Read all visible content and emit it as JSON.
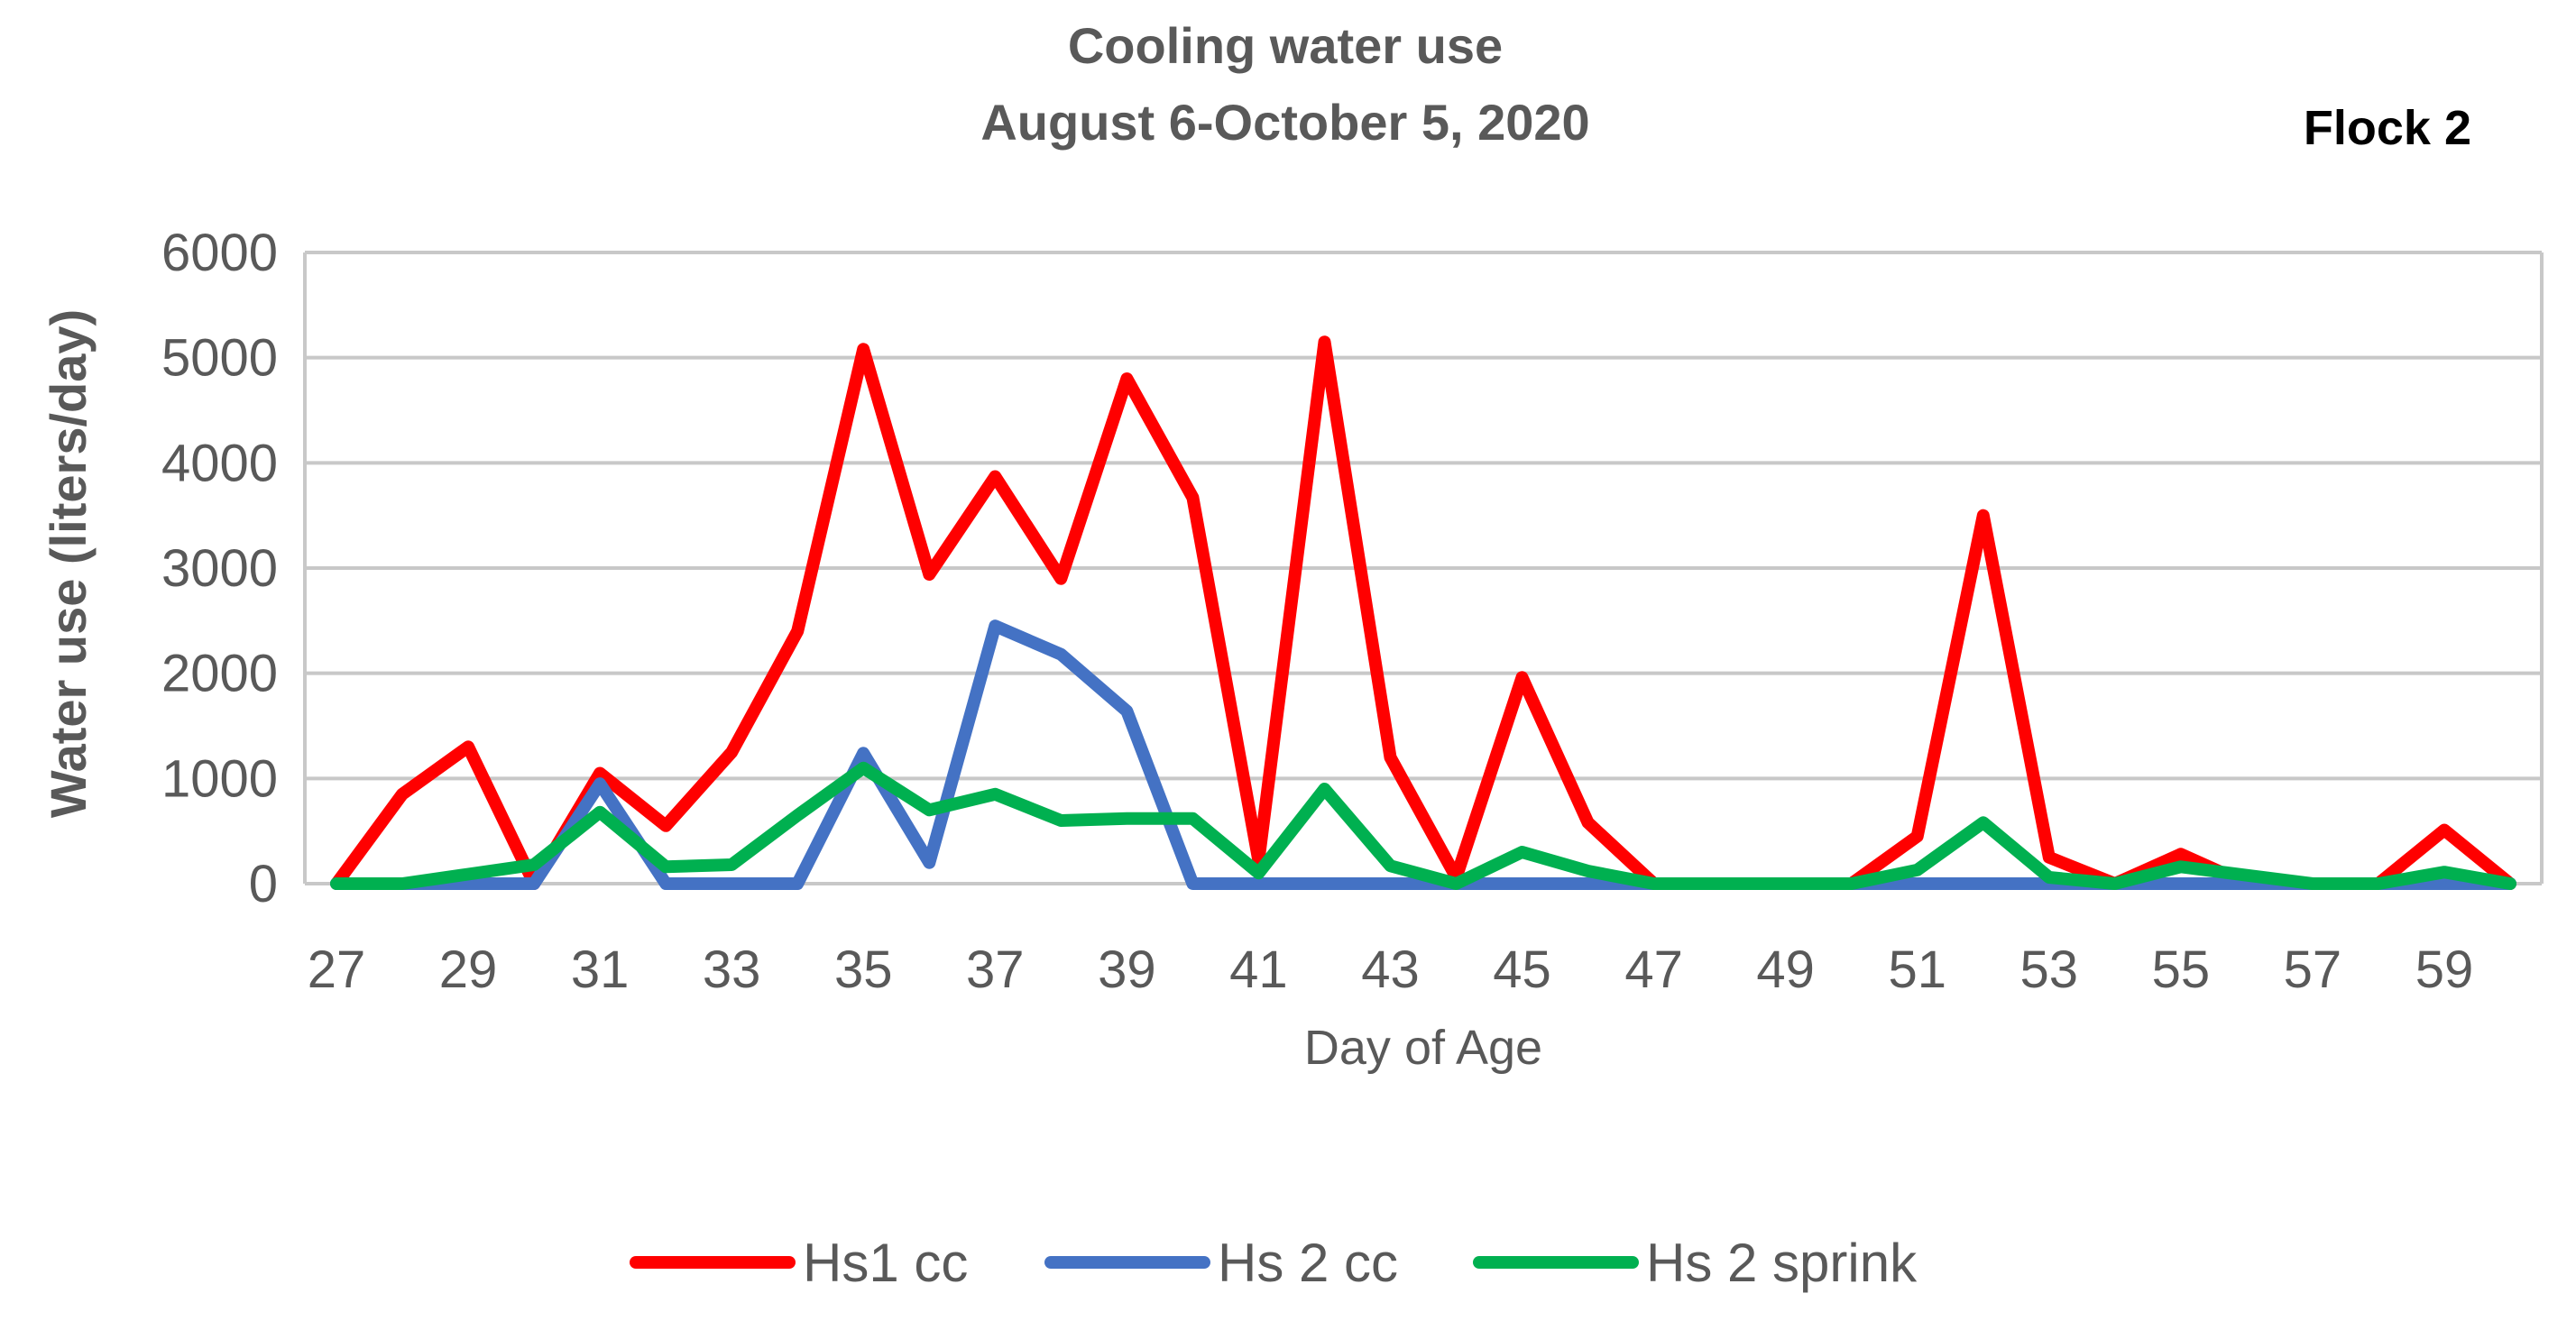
{
  "chart_data": {
    "type": "line",
    "title": "Cooling water use",
    "subtitle": "August 6-October 5, 2020",
    "annotation": "Flock 2",
    "xlabel": "Day of Age",
    "ylabel": "Water use (liters/day)",
    "ylim": [
      0,
      6000
    ],
    "yticks": [
      0,
      1000,
      2000,
      3000,
      4000,
      5000,
      6000
    ],
    "xticks": [
      27,
      29,
      31,
      33,
      35,
      37,
      39,
      41,
      43,
      45,
      47,
      49,
      51,
      53,
      55,
      57,
      59
    ],
    "grid": true,
    "legend_position": "bottom",
    "x": [
      27,
      28,
      29,
      30,
      31,
      32,
      33,
      34,
      35,
      36,
      37,
      38,
      39,
      40,
      41,
      42,
      43,
      44,
      45,
      46,
      47,
      48,
      49,
      50,
      51,
      52,
      53,
      54,
      55,
      56,
      57,
      58,
      59,
      60
    ],
    "series": [
      {
        "name": "Hs1 cc",
        "color": "#ff0000",
        "values": [
          0,
          850,
          1300,
          0,
          1050,
          550,
          1250,
          2400,
          5080,
          2940,
          3870,
          2900,
          4800,
          3670,
          220,
          5150,
          1200,
          60,
          1960,
          580,
          0,
          0,
          0,
          0,
          450,
          3500,
          250,
          0,
          280,
          0,
          0,
          0,
          510,
          0
        ]
      },
      {
        "name": "Hs 2 cc",
        "color": "#4472c4",
        "values": [
          0,
          0,
          0,
          0,
          950,
          0,
          0,
          0,
          1240,
          200,
          2450,
          2180,
          1640,
          0,
          0,
          0,
          0,
          0,
          0,
          0,
          0,
          0,
          0,
          0,
          0,
          0,
          0,
          0,
          0,
          0,
          0,
          0,
          0,
          0
        ]
      },
      {
        "name": "Hs 2 sprink",
        "color": "#00b050",
        "values": [
          0,
          0,
          90,
          180,
          680,
          160,
          180,
          650,
          1100,
          700,
          850,
          600,
          620,
          620,
          100,
          900,
          170,
          0,
          300,
          120,
          0,
          0,
          0,
          0,
          130,
          580,
          60,
          0,
          160,
          80,
          0,
          0,
          110,
          0
        ]
      }
    ]
  }
}
